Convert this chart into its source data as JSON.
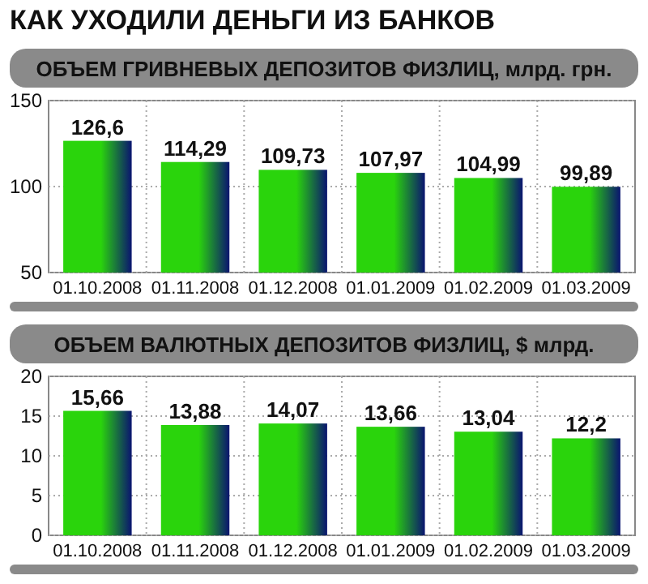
{
  "chart_data": [
    {
      "type": "bar",
      "title": "КАК УХОДИЛИ ДЕНЬГИ ИЗ БАНКОВ",
      "subtitle": "ОБЪЕМ ГРИВНЕВЫХ ДЕПОЗИТОВ ФИЗЛИЦ, млрд. грн.",
      "categories": [
        "01.10.2008",
        "01.11.2008",
        "01.12.2008",
        "01.01.2009",
        "01.02.2009",
        "01.03.2009"
      ],
      "values": [
        126.6,
        114.29,
        109.73,
        107.97,
        104.99,
        99.89
      ],
      "value_labels": [
        "126,6",
        "114,29",
        "109,73",
        "107,97",
        "104,99",
        "99,89"
      ],
      "color": "#2ad40c",
      "ylim": [
        50,
        150
      ],
      "yticks": [
        50,
        100,
        150
      ],
      "grid": true
    },
    {
      "type": "bar",
      "title": "ОБЪЕМ ВАЛЮТНЫХ ДЕПОЗИТОВ ФИЗЛИЦ, $ млрд.",
      "categories": [
        "01.10.2008",
        "01.11.2008",
        "01.12.2008",
        "01.01.2009",
        "01.02.2009",
        "01.03.2009"
      ],
      "values": [
        15.66,
        13.88,
        14.07,
        13.66,
        13.04,
        12.2
      ],
      "value_labels": [
        "15,66",
        "13,88",
        "14,07",
        "13,66",
        "13,04",
        "12,2"
      ],
      "color": "#2ad40c",
      "ylim": [
        0,
        20
      ],
      "yticks": [
        0,
        5,
        10,
        15,
        20
      ],
      "grid": true
    }
  ]
}
